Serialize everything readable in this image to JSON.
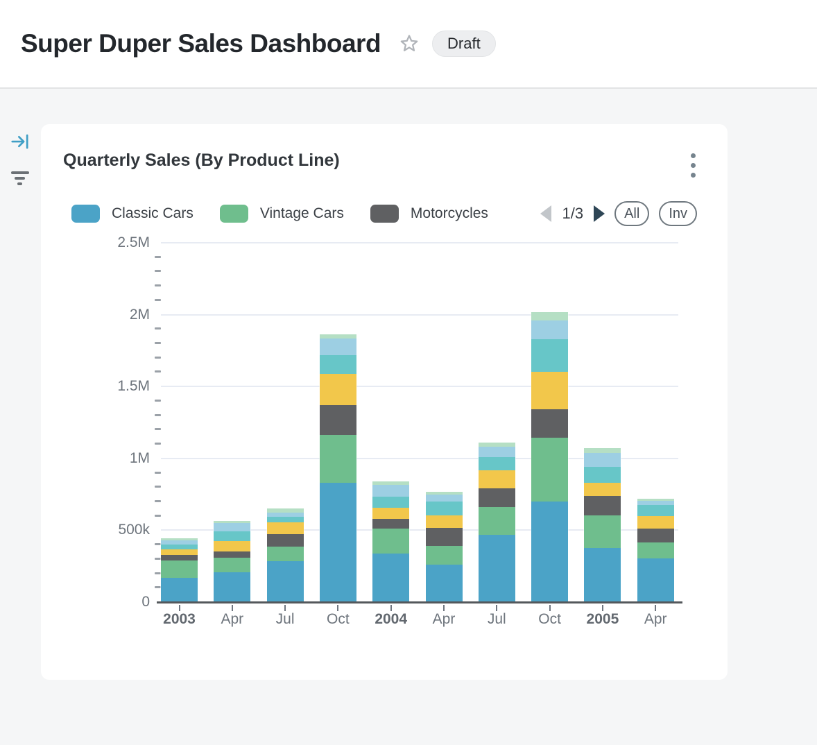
{
  "page": {
    "title": "Super Duper Sales Dashboard",
    "badge": "Draft"
  },
  "card": {
    "title": "Quarterly Sales (By Product Line)",
    "legend": [
      {
        "label": "Classic Cars",
        "color": "#4BA3C7"
      },
      {
        "label": "Vintage Cars",
        "color": "#6FBE8D"
      },
      {
        "label": "Motorcycles",
        "color": "#5F6062"
      }
    ],
    "pagination": {
      "label": "1/3"
    },
    "actions": {
      "all": "All",
      "invert": "Inv"
    }
  },
  "chart_data": {
    "type": "bar",
    "stacked": true,
    "title": "Quarterly Sales (By Product Line)",
    "categories": [
      "2003",
      "Apr",
      "Jul",
      "Oct",
      "2004",
      "Apr",
      "Jul",
      "Oct",
      "2005",
      "Apr"
    ],
    "series": [
      {
        "label": "Classic Cars",
        "color": "#4BA3C7",
        "values": [
          167000,
          208000,
          283000,
          830000,
          336000,
          261000,
          470000,
          698000,
          376000,
          304000
        ]
      },
      {
        "label": "Vintage Cars",
        "color": "#6FBE8D",
        "values": [
          124000,
          101000,
          101000,
          334000,
          174000,
          132000,
          193000,
          446000,
          228000,
          110000
        ]
      },
      {
        "label": "Motorcycles",
        "color": "#5F6062",
        "values": [
          37000,
          43000,
          88000,
          205000,
          67000,
          125000,
          129000,
          198000,
          134000,
          97000
        ]
      },
      {
        "label": "",
        "color": "#F2C74B",
        "values": [
          40000,
          72000,
          83000,
          217000,
          81000,
          87000,
          124000,
          261000,
          92000,
          87000
        ]
      },
      {
        "label": "",
        "color": "#67C6C8",
        "values": [
          32000,
          68000,
          37000,
          133000,
          76000,
          95000,
          93000,
          225000,
          112000,
          77000
        ]
      },
      {
        "label": "",
        "color": "#9DCFE3",
        "values": [
          29000,
          58000,
          30000,
          113000,
          82000,
          50000,
          71000,
          133000,
          97000,
          29000
        ]
      },
      {
        "label": "",
        "color": "#B5DFC4",
        "values": [
          14000,
          16000,
          29000,
          29000,
          23000,
          16000,
          29000,
          56000,
          32000,
          16000
        ]
      }
    ],
    "ylim": [
      0,
      2500000
    ],
    "y_ticks": [
      {
        "value": 2500000,
        "label": "2.5M"
      },
      {
        "value": 2000000,
        "label": "2M"
      },
      {
        "value": 1500000,
        "label": "1.5M"
      },
      {
        "value": 1000000,
        "label": "1M"
      },
      {
        "value": 500000,
        "label": "500k"
      },
      {
        "value": 0,
        "label": "0"
      }
    ],
    "minor_ticks_between_major": 4,
    "grid": true,
    "legend_position": "top",
    "legend_page": "1/3"
  }
}
